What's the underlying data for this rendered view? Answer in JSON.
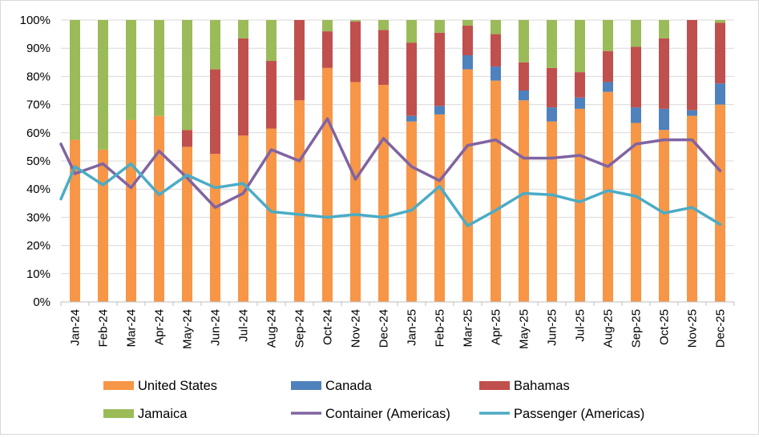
{
  "chart_data": {
    "type": "bar",
    "stacked": true,
    "categories": [
      "Jan-24",
      "Feb-24",
      "Mar-24",
      "Apr-24",
      "May-24",
      "Jun-24",
      "Jul-24",
      "Aug-24",
      "Sep-24",
      "Oct-24",
      "Nov-24",
      "Dec-24",
      "Jan-25",
      "Feb-25",
      "Mar-25",
      "Apr-25",
      "May-25",
      "Jun-25",
      "Jul-25",
      "Aug-25",
      "Sep-25",
      "Oct-25",
      "Nov-25",
      "Dec-25"
    ],
    "ylim": [
      0,
      100
    ],
    "yticks": [
      "0%",
      "10%",
      "20%",
      "30%",
      "40%",
      "50%",
      "60%",
      "70%",
      "80%",
      "90%",
      "100%"
    ],
    "grid": true,
    "legend_position": "bottom",
    "series": [
      {
        "name": "United States",
        "kind": "bar",
        "color": "#F79646",
        "values": [
          57.5,
          54,
          64.5,
          66,
          55,
          52.5,
          59,
          61.5,
          71.5,
          83,
          78,
          77,
          64,
          66.5,
          82.5,
          78.5,
          71.5,
          64,
          68.5,
          74.5,
          63.5,
          61,
          66,
          70
        ]
      },
      {
        "name": "Canada",
        "kind": "bar",
        "color": "#4F81BD",
        "values": [
          0,
          0,
          0,
          0,
          0,
          0,
          0,
          0,
          0,
          0,
          0,
          0,
          2,
          3,
          5,
          5,
          3.5,
          5,
          4,
          3.5,
          5.5,
          7.5,
          2,
          7.5
        ]
      },
      {
        "name": "Bahamas",
        "kind": "bar",
        "color": "#C0504D",
        "values": [
          0,
          0,
          0,
          0,
          6,
          30,
          34.5,
          24,
          28.5,
          13,
          21.5,
          19.5,
          26,
          26,
          10.5,
          11.5,
          10,
          14,
          9,
          11,
          21.5,
          25,
          32,
          21.5
        ]
      },
      {
        "name": "Jamaica",
        "kind": "bar",
        "color": "#9BBB59",
        "values": [
          42.5,
          46,
          35.5,
          34,
          39,
          17.5,
          6.5,
          14.5,
          0,
          4,
          0.5,
          3.5,
          8,
          4.5,
          2,
          5,
          15,
          17,
          18.5,
          11,
          9.5,
          6.5,
          0,
          1
        ]
      },
      {
        "name": "Container (Americas)",
        "kind": "line",
        "color": "#8064A2",
        "start": 56,
        "values": [
          45.5,
          49,
          40.5,
          53.5,
          44,
          33.5,
          38.5,
          54,
          50,
          65,
          43.5,
          58,
          48,
          43,
          55.5,
          57.5,
          51,
          51,
          52,
          48,
          56,
          57.5,
          57.5,
          46.5
        ]
      },
      {
        "name": "Passenger (Americas)",
        "kind": "line",
        "color": "#4BACC6",
        "start": 36.5,
        "values": [
          48,
          41.5,
          49,
          38,
          45,
          40.5,
          42,
          32,
          31,
          30,
          31,
          30,
          32.5,
          41,
          27,
          32.5,
          38.5,
          38,
          35.5,
          39.5,
          37.5,
          31.5,
          33.5,
          27.5
        ]
      }
    ]
  }
}
